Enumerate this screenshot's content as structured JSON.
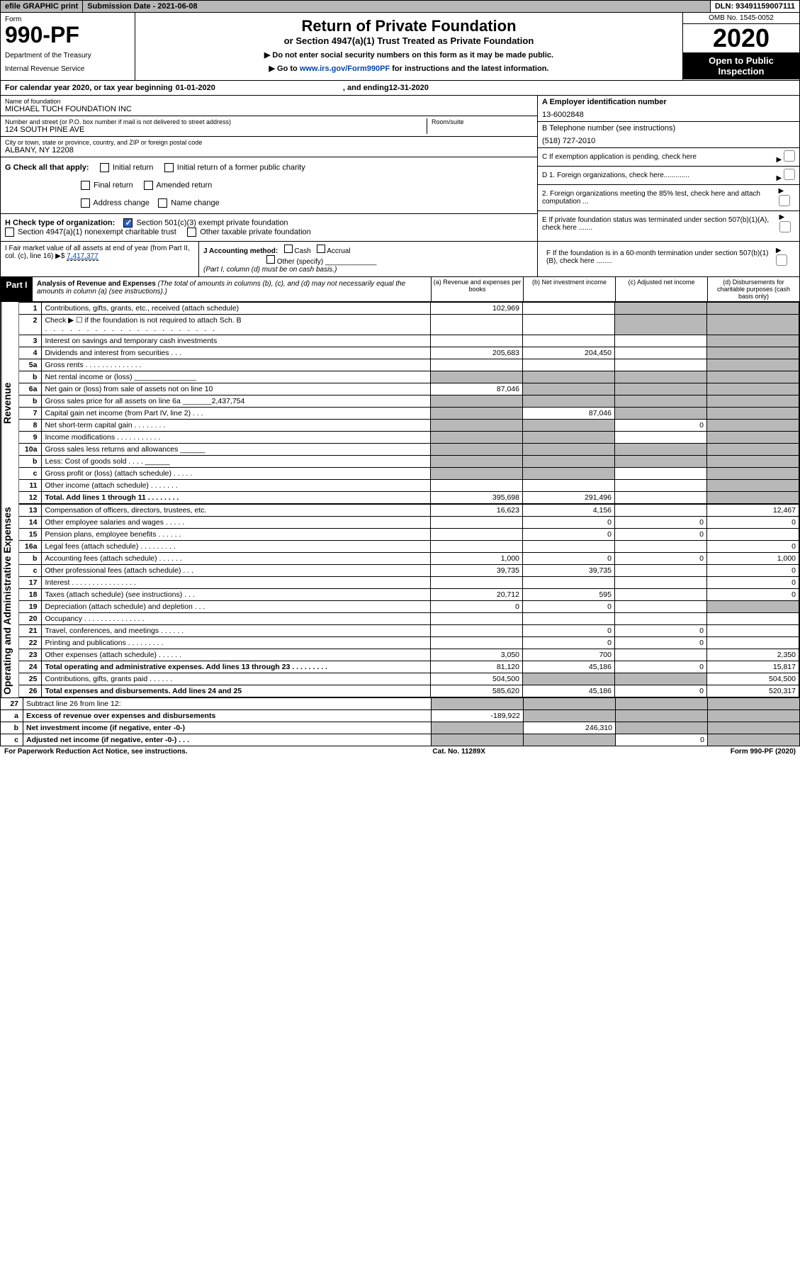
{
  "topbar": {
    "efile": "efile GRAPHIC print",
    "subdate": "Submission Date - 2021-06-08",
    "dln": "DLN: 93491159007111"
  },
  "header": {
    "form_label": "Form",
    "form_num": "990-PF",
    "dept": "Department of the Treasury",
    "irs": "Internal Revenue Service",
    "title": "Return of Private Foundation",
    "subtitle": "or Section 4947(a)(1) Trust Treated as Private Foundation",
    "note1": "▶ Do not enter social security numbers on this form as it may be made public.",
    "note2_pre": "▶ Go to ",
    "note2_link": "www.irs.gov/Form990PF",
    "note2_post": " for instructions and the latest information.",
    "omb": "OMB No. 1545-0052",
    "year": "2020",
    "open": "Open to Public Inspection"
  },
  "cal": {
    "label": "For calendar year 2020, or tax year beginning ",
    "begin": "01-01-2020",
    "mid": ", and ending ",
    "end": "12-31-2020"
  },
  "info": {
    "name_label": "Name of foundation",
    "name": "MICHAEL TUCH FOUNDATION INC",
    "addr_label": "Number and street (or P.O. box number if mail is not delivered to street address)",
    "addr": "124 SOUTH PINE AVE",
    "room_label": "Room/suite",
    "city_label": "City or town, state or province, country, and ZIP or foreign postal code",
    "city": "ALBANY, NY  12208",
    "ein_label": "A Employer identification number",
    "ein": "13-6002848",
    "phone_label": "B Telephone number (see instructions)",
    "phone": "(518) 727-2010",
    "c_label": "C If exemption application is pending, check here",
    "d1": "D 1. Foreign organizations, check here.............",
    "d2": "2. Foreign organizations meeting the 85% test, check here and attach computation ...",
    "e_label": "E If private foundation status was terminated under section 507(b)(1)(A), check here .......",
    "f_label": "F If the foundation is in a 60-month termination under section 507(b)(1)(B), check here ........"
  },
  "g": {
    "label": "G Check all that apply:",
    "opts": [
      "Initial return",
      "Initial return of a former public charity",
      "Final return",
      "Amended return",
      "Address change",
      "Name change"
    ]
  },
  "h": {
    "label": "H Check type of organization:",
    "opt1": "Section 501(c)(3) exempt private foundation",
    "opt2": "Section 4947(a)(1) nonexempt charitable trust",
    "opt3": "Other taxable private foundation"
  },
  "i": {
    "label": "I Fair market value of all assets at end of year (from Part II, col. (c), line 16) ▶$ ",
    "value": "7,417,377"
  },
  "j": {
    "label": "J Accounting method:",
    "cash": "Cash",
    "accrual": "Accrual",
    "other": "Other (specify)",
    "note": "(Part I, column (d) must be on cash basis.)"
  },
  "part1": {
    "label": "Part I",
    "title": "Analysis of Revenue and Expenses",
    "titlenote": " (The total of amounts in columns (b), (c), and (d) may not necessarily equal the amounts in column (a) (see instructions).)",
    "col_a": "(a) Revenue and expenses per books",
    "col_b": "(b) Net investment income",
    "col_c": "(c) Adjusted net income",
    "col_d": "(d) Disbursements for charitable purposes (cash basis only)"
  },
  "side": {
    "revenue": "Revenue",
    "expenses": "Operating and Administrative Expenses"
  },
  "lines": [
    {
      "n": "1",
      "d": "Contributions, gifts, grants, etc., received (attach schedule)",
      "a": "102,969",
      "b": "",
      "c": "s",
      "ds": "s"
    },
    {
      "n": "2",
      "d": "Check ▶ ☐ if the foundation is not required to attach Sch. B",
      "a": "",
      "b": "",
      "c": "s",
      "ds": "s",
      "dots": ". . . . . . . . . . . . . . . . . . . . ."
    },
    {
      "n": "3",
      "d": "Interest on savings and temporary cash investments",
      "a": "",
      "b": "",
      "c": "",
      "ds": "s"
    },
    {
      "n": "4",
      "d": "Dividends and interest from securities   .  .  .",
      "a": "205,683",
      "b": "204,450",
      "c": "",
      "ds": "s"
    },
    {
      "n": "5a",
      "d": "Gross rents    . . . . . . . . . . . . . .",
      "a": "",
      "b": "",
      "c": "",
      "ds": "s"
    },
    {
      "n": "b",
      "d": "Net rental income or (loss)  _______________",
      "a": "s",
      "b": "s",
      "c": "s",
      "ds": "s"
    },
    {
      "n": "6a",
      "d": "Net gain or (loss) from sale of assets not on line 10",
      "a": "87,046",
      "b": "s",
      "c": "s",
      "ds": "s"
    },
    {
      "n": "b",
      "d": "Gross sales price for all assets on line 6a _______2,437,754",
      "a": "s",
      "b": "s",
      "c": "s",
      "ds": "s"
    },
    {
      "n": "7",
      "d": "Capital gain net income (from Part IV, line 2)   .  .  .",
      "a": "s",
      "b": "87,046",
      "c": "s",
      "ds": "s"
    },
    {
      "n": "8",
      "d": "Net short-term capital gain   . . . . . . . .",
      "a": "s",
      "b": "s",
      "c": "0",
      "ds": "s"
    },
    {
      "n": "9",
      "d": "Income modifications  . . . . . . . . . . .",
      "a": "s",
      "b": "s",
      "c": "",
      "ds": "s"
    },
    {
      "n": "10a",
      "d": "Gross sales less returns and allowances  ______",
      "a": "s",
      "b": "s",
      "c": "s",
      "ds": "s"
    },
    {
      "n": "b",
      "d": "Less: Cost of goods sold     .  .  .  .  ______",
      "a": "s",
      "b": "s",
      "c": "s",
      "ds": "s"
    },
    {
      "n": "c",
      "d": "Gross profit or (loss) (attach schedule)   . . . . .",
      "a": "s",
      "b": "s",
      "c": "",
      "ds": "s"
    },
    {
      "n": "11",
      "d": "Other income (attach schedule)    . . . . . . .",
      "a": "",
      "b": "",
      "c": "",
      "ds": "s"
    },
    {
      "n": "12",
      "d": "Total. Add lines 1 through 11    . . . . . . . .",
      "a": "395,698",
      "b": "291,496",
      "c": "",
      "ds": "s",
      "bold": true
    }
  ],
  "exp": [
    {
      "n": "13",
      "d": "Compensation of officers, directors, trustees, etc.",
      "a": "16,623",
      "b": "4,156",
      "c": "",
      "ds": "12,467"
    },
    {
      "n": "14",
      "d": "Other employee salaries and wages    . . . . .",
      "a": "",
      "b": "0",
      "c": "0",
      "ds": "0"
    },
    {
      "n": "15",
      "d": "Pension plans, employee benefits   . . . . . .",
      "a": "",
      "b": "0",
      "c": "0",
      "ds": ""
    },
    {
      "n": "16a",
      "d": "Legal fees (attach schedule)  . . . . . . . . .",
      "a": "",
      "b": "",
      "c": "",
      "ds": "0"
    },
    {
      "n": "b",
      "d": "Accounting fees (attach schedule)   . . . . . .",
      "a": "1,000",
      "b": "0",
      "c": "0",
      "ds": "1,000"
    },
    {
      "n": "c",
      "d": "Other professional fees (attach schedule)    .  .  .",
      "a": "39,735",
      "b": "39,735",
      "c": "",
      "ds": "0"
    },
    {
      "n": "17",
      "d": "Interest   . . . . . . . . . . . . . . . .",
      "a": "",
      "b": "",
      "c": "",
      "ds": "0"
    },
    {
      "n": "18",
      "d": "Taxes (attach schedule) (see instructions)    .  .  .",
      "a": "20,712",
      "b": "595",
      "c": "",
      "ds": "0"
    },
    {
      "n": "19",
      "d": "Depreciation (attach schedule) and depletion    .  .  .",
      "a": "0",
      "b": "0",
      "c": "",
      "ds": "s"
    },
    {
      "n": "20",
      "d": "Occupancy  . . . . . . . . . . . . . . .",
      "a": "",
      "b": "",
      "c": "",
      "ds": ""
    },
    {
      "n": "21",
      "d": "Travel, conferences, and meetings  . . . . . .",
      "a": "",
      "b": "0",
      "c": "0",
      "ds": ""
    },
    {
      "n": "22",
      "d": "Printing and publications  . . . . . . . . .",
      "a": "",
      "b": "0",
      "c": "0",
      "ds": ""
    },
    {
      "n": "23",
      "d": "Other expenses (attach schedule)   . . . . . .",
      "a": "3,050",
      "b": "700",
      "c": "",
      "ds": "2,350"
    },
    {
      "n": "24",
      "d": "Total operating and administrative expenses. Add lines 13 through 23   . . . . . . . . .",
      "a": "81,120",
      "b": "45,186",
      "c": "0",
      "ds": "15,817",
      "bold": true
    },
    {
      "n": "25",
      "d": "Contributions, gifts, grants paid      . . . . . .",
      "a": "504,500",
      "b": "s",
      "c": "s",
      "ds": "504,500"
    },
    {
      "n": "26",
      "d": "Total expenses and disbursements. Add lines 24 and 25",
      "a": "585,620",
      "b": "45,186",
      "c": "0",
      "ds": "520,317",
      "bold": true
    }
  ],
  "bottom": [
    {
      "n": "27",
      "d": "Subtract line 26 from line 12:",
      "a": "s",
      "b": "s",
      "c": "s",
      "ds": "s"
    },
    {
      "n": "a",
      "d": "Excess of revenue over expenses and disbursements",
      "a": "-189,922",
      "b": "s",
      "c": "s",
      "ds": "s",
      "bold": true
    },
    {
      "n": "b",
      "d": "Net investment income (if negative, enter -0-)",
      "a": "s",
      "b": "246,310",
      "c": "s",
      "ds": "s",
      "bold": true
    },
    {
      "n": "c",
      "d": "Adjusted net income (if negative, enter -0-)    .  .  .",
      "a": "s",
      "b": "s",
      "c": "0",
      "ds": "s",
      "bold": true
    }
  ],
  "footer": {
    "left": "For Paperwork Reduction Act Notice, see instructions.",
    "mid": "Cat. No. 11289X",
    "right": "Form 990-PF (2020)"
  }
}
